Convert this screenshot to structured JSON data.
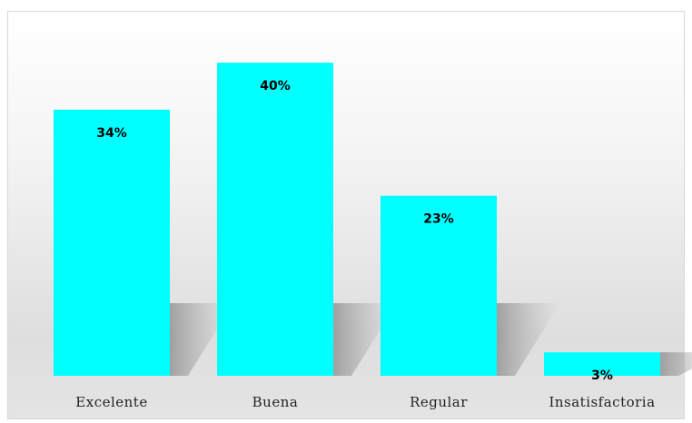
{
  "chart_data": {
    "type": "bar",
    "categories": [
      "Excelente",
      "Buena",
      "Regular",
      "Insatisfactoria"
    ],
    "values": [
      34,
      40,
      23,
      3
    ],
    "value_labels": [
      "34%",
      "40%",
      "23%",
      "3%"
    ],
    "ylim": [
      0,
      45
    ],
    "grid": false,
    "legend": "none",
    "bar_color": "#00ffff"
  }
}
